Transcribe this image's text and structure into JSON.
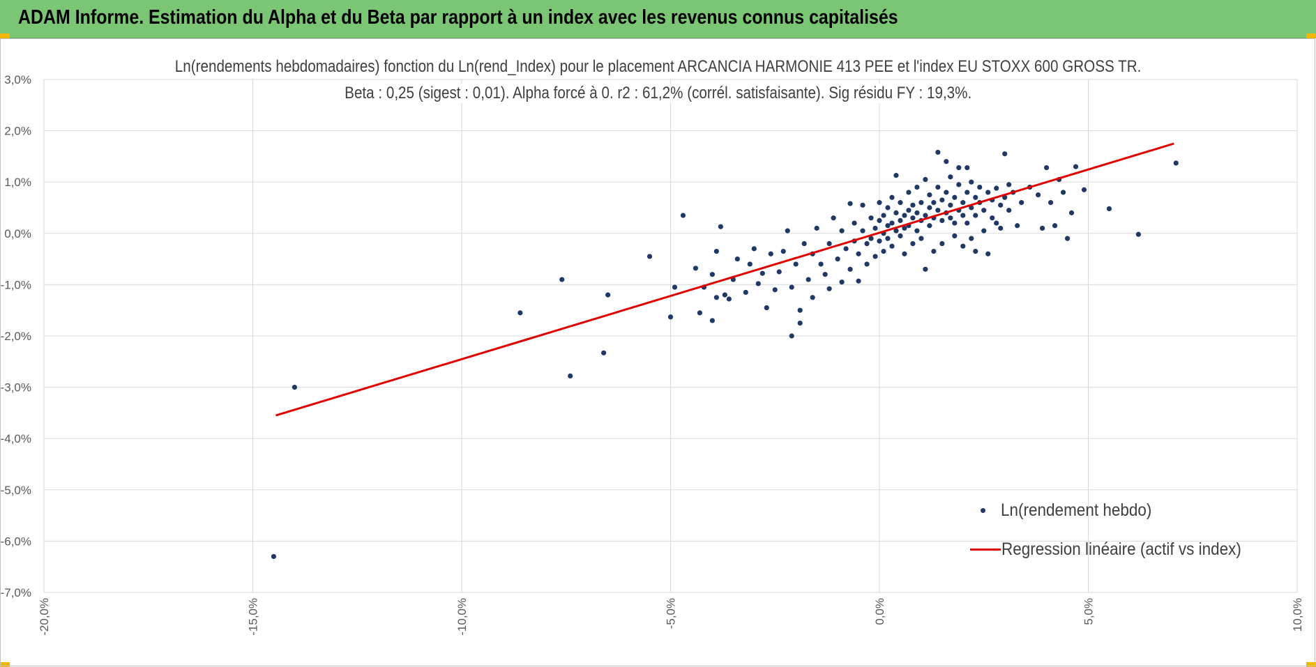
{
  "header": {
    "title": "ADAM Informe. Estimation du Alpha et du Beta par rapport à un index avec les revenus connus capitalisés"
  },
  "chart_data": {
    "type": "scatter",
    "title": "Ln(rendements hebdomadaires) fonction du Ln(rend_Index) pour le placement ARCANCIA HARMONIE 413 PEE et l'index EU STOXX 600 GROSS TR.",
    "subtitle": "Beta : 0,25 (sigest : 0,01).  Alpha forcé à 0. r2 : 61,2% (corrél. satisfaisante). Sig résidu FY : 19,3%.",
    "xlabel": "",
    "ylabel": "",
    "xlim": [
      -0.2,
      0.1
    ],
    "ylim": [
      -0.07,
      0.03
    ],
    "x_ticks": [
      "-20,0%",
      "-15,0%",
      "-10,0%",
      "-5,0%",
      "0,0%",
      "5,0%",
      "10,0%"
    ],
    "y_ticks": [
      "3,0%",
      "2,0%",
      "1,0%",
      "0,0%",
      "-1,0%",
      "-2,0%",
      "-3,0%",
      "-4,0%",
      "-5,0%",
      "-6,0%",
      "-7,0%"
    ],
    "grid": true,
    "legend_position": "bottom-right",
    "series": [
      {
        "name": "Ln(rendement hebdo)",
        "kind": "scatter",
        "color": "#1f3864",
        "points": [
          [
            -0.145,
            -0.063
          ],
          [
            -0.14,
            -0.03
          ],
          [
            -0.086,
            -0.0155
          ],
          [
            -0.076,
            -0.009
          ],
          [
            -0.074,
            -0.0278
          ],
          [
            -0.065,
            -0.012
          ],
          [
            -0.066,
            -0.0233
          ],
          [
            -0.055,
            -0.0045
          ],
          [
            -0.047,
            0.0035
          ],
          [
            -0.05,
            -0.0163
          ],
          [
            -0.049,
            -0.0105
          ],
          [
            -0.044,
            -0.0068
          ],
          [
            -0.043,
            -0.0155
          ],
          [
            -0.042,
            -0.0105
          ],
          [
            -0.04,
            -0.017
          ],
          [
            -0.04,
            -0.008
          ],
          [
            -0.039,
            -0.0125
          ],
          [
            -0.038,
            0.0013
          ],
          [
            -0.039,
            -0.0035
          ],
          [
            -0.037,
            -0.012
          ],
          [
            -0.036,
            -0.0128
          ],
          [
            -0.035,
            -0.009
          ],
          [
            -0.034,
            -0.005
          ],
          [
            -0.032,
            -0.0115
          ],
          [
            -0.031,
            -0.006
          ],
          [
            -0.03,
            -0.003
          ],
          [
            -0.029,
            -0.0098
          ],
          [
            -0.028,
            -0.0078
          ],
          [
            -0.027,
            -0.0145
          ],
          [
            -0.026,
            -0.004
          ],
          [
            -0.025,
            -0.011
          ],
          [
            -0.024,
            -0.0075
          ],
          [
            -0.023,
            -0.0035
          ],
          [
            -0.022,
            0.0005
          ],
          [
            -0.021,
            -0.0105
          ],
          [
            -0.021,
            -0.02
          ],
          [
            -0.02,
            -0.006
          ],
          [
            -0.019,
            -0.015
          ],
          [
            -0.019,
            -0.0175
          ],
          [
            -0.018,
            -0.002
          ],
          [
            -0.017,
            -0.009
          ],
          [
            -0.016,
            -0.004
          ],
          [
            -0.016,
            -0.0125
          ],
          [
            -0.015,
            0.001
          ],
          [
            -0.014,
            -0.006
          ],
          [
            -0.013,
            -0.008
          ],
          [
            -0.012,
            -0.002
          ],
          [
            -0.012,
            -0.0108
          ],
          [
            -0.011,
            0.003
          ],
          [
            -0.01,
            -0.005
          ],
          [
            -0.009,
            -0.0095
          ],
          [
            -0.009,
            0.0005
          ],
          [
            -0.008,
            -0.003
          ],
          [
            -0.007,
            0.0058
          ],
          [
            -0.007,
            -0.007
          ],
          [
            -0.006,
            -0.0015
          ],
          [
            -0.006,
            0.002
          ],
          [
            -0.005,
            -0.004
          ],
          [
            -0.005,
            -0.0093
          ],
          [
            -0.004,
            0.0005
          ],
          [
            -0.004,
            0.0055
          ],
          [
            -0.003,
            -0.002
          ],
          [
            -0.003,
            -0.006
          ],
          [
            -0.002,
            0.003
          ],
          [
            -0.002,
            -0.001
          ],
          [
            -0.001,
            0.001
          ],
          [
            -0.001,
            -0.0045
          ],
          [
            0.0,
            0.0025
          ],
          [
            0.0,
            -0.0015
          ],
          [
            0.0,
            0.006
          ],
          [
            0.001,
            0.0
          ],
          [
            0.001,
            0.0035
          ],
          [
            0.001,
            -0.0035
          ],
          [
            0.002,
            0.0015
          ],
          [
            0.002,
            0.005
          ],
          [
            0.002,
            -0.001
          ],
          [
            0.003,
            0.002
          ],
          [
            0.003,
            0.007
          ],
          [
            0.003,
            -0.0025
          ],
          [
            0.004,
            0.0005
          ],
          [
            0.004,
            0.004
          ],
          [
            0.004,
            0.0113
          ],
          [
            0.005,
            0.0025
          ],
          [
            0.005,
            -0.0005
          ],
          [
            0.005,
            0.006
          ],
          [
            0.006,
            0.001
          ],
          [
            0.006,
            0.0035
          ],
          [
            0.006,
            -0.004
          ],
          [
            0.007,
            0.0045
          ],
          [
            0.007,
            0.008
          ],
          [
            0.007,
            0.0015
          ],
          [
            0.008,
            0.003
          ],
          [
            0.008,
            -0.002
          ],
          [
            0.008,
            0.0055
          ],
          [
            0.009,
            0.0005
          ],
          [
            0.009,
            0.004
          ],
          [
            0.009,
            0.009
          ],
          [
            0.01,
            0.0025
          ],
          [
            0.01,
            0.006
          ],
          [
            0.01,
            -0.001
          ],
          [
            0.011,
            0.0035
          ],
          [
            0.011,
            0.0105
          ],
          [
            0.011,
            -0.007
          ],
          [
            0.012,
            0.005
          ],
          [
            0.012,
            0.0015
          ],
          [
            0.012,
            0.0075
          ],
          [
            0.013,
            0.003
          ],
          [
            0.013,
            0.006
          ],
          [
            0.013,
            -0.0035
          ],
          [
            0.014,
            0.0045
          ],
          [
            0.014,
            0.009
          ],
          [
            0.014,
            0.0158
          ],
          [
            0.015,
            0.0025
          ],
          [
            0.015,
            0.0065
          ],
          [
            0.015,
            -0.002
          ],
          [
            0.016,
            0.004
          ],
          [
            0.016,
            0.014
          ],
          [
            0.016,
            0.008
          ],
          [
            0.017,
            0.003
          ],
          [
            0.017,
            0.0055
          ],
          [
            0.017,
            0.011
          ],
          [
            0.018,
            0.002
          ],
          [
            0.018,
            0.007
          ],
          [
            0.018,
            -0.0005
          ],
          [
            0.019,
            0.0045
          ],
          [
            0.019,
            0.0095
          ],
          [
            0.019,
            0.0128
          ],
          [
            0.02,
            0.0035
          ],
          [
            0.02,
            0.006
          ],
          [
            0.02,
            -0.0025
          ],
          [
            0.021,
            0.008
          ],
          [
            0.021,
            0.002
          ],
          [
            0.021,
            0.0128
          ],
          [
            0.022,
            0.005
          ],
          [
            0.022,
            0.01
          ],
          [
            0.022,
            -0.001
          ],
          [
            0.023,
            0.007
          ],
          [
            0.023,
            0.0035
          ],
          [
            0.023,
            -0.0035
          ],
          [
            0.024,
            0.006
          ],
          [
            0.024,
            0.009
          ],
          [
            0.025,
            0.0005
          ],
          [
            0.025,
            0.0045
          ],
          [
            0.026,
            0.008
          ],
          [
            0.026,
            -0.004
          ],
          [
            0.027,
            0.003
          ],
          [
            0.027,
            0.0065
          ],
          [
            0.028,
            0.002
          ],
          [
            0.028,
            0.0088
          ],
          [
            0.029,
            0.0055
          ],
          [
            0.029,
            0.001
          ],
          [
            0.03,
            0.007
          ],
          [
            0.03,
            0.0155
          ],
          [
            0.031,
            0.0045
          ],
          [
            0.031,
            0.0095
          ],
          [
            0.032,
            0.008
          ],
          [
            0.033,
            0.0015
          ],
          [
            0.034,
            0.006
          ],
          [
            0.036,
            0.009
          ],
          [
            0.038,
            0.0075
          ],
          [
            0.039,
            0.001
          ],
          [
            0.04,
            0.0128
          ],
          [
            0.041,
            0.006
          ],
          [
            0.042,
            0.0015
          ],
          [
            0.043,
            0.0105
          ],
          [
            0.044,
            0.008
          ],
          [
            0.045,
            -0.001
          ],
          [
            0.046,
            0.004
          ],
          [
            0.047,
            0.013
          ],
          [
            0.049,
            0.0085
          ],
          [
            0.055,
            0.0048
          ],
          [
            0.062,
            -0.0002
          ],
          [
            0.071,
            0.0137
          ]
        ]
      },
      {
        "name": "Regression linéaire (actif vs index)",
        "kind": "line",
        "color": "#e00000",
        "from": [
          -0.1445,
          -0.0355
        ],
        "to": [
          0.0705,
          0.0175
        ]
      }
    ]
  }
}
